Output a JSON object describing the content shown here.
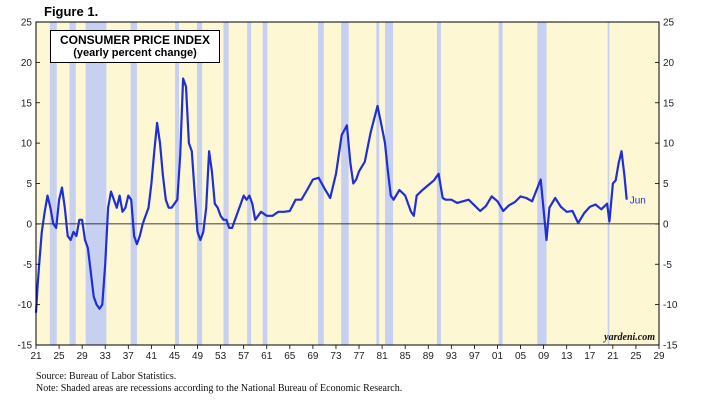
{
  "figure_label": "Figure 1.",
  "source_note": "Source: Bureau of Labor Statistics.",
  "shading_note": "Note: Shaded areas are recessions according to the National Bureau of Economic Research.",
  "watermark": "yardeni.com",
  "colors": {
    "series": "#1f2fd6",
    "recession": "#c8d0f2",
    "background": "#fdf7d4",
    "frame": "#000000"
  },
  "chart_data": {
    "type": "line",
    "title": "CONSUMER PRICE INDEX",
    "subtitle": "(yearly percent change)",
    "xlabel": "",
    "ylabel": "",
    "xlim": [
      1921,
      2029
    ],
    "ylim": [
      -15,
      25
    ],
    "y_ticks": [
      -15,
      -10,
      -5,
      0,
      5,
      10,
      15,
      20,
      25
    ],
    "x_ticks": [
      "21",
      "25",
      "29",
      "33",
      "37",
      "41",
      "45",
      "49",
      "53",
      "57",
      "61",
      "65",
      "69",
      "73",
      "77",
      "81",
      "85",
      "89",
      "93",
      "97",
      "01",
      "05",
      "09",
      "13",
      "17",
      "21",
      "25",
      "29"
    ],
    "grid": false,
    "end_label": "Jun",
    "recessions": [
      [
        1923.4,
        1924.6
      ],
      [
        1926.8,
        1927.9
      ],
      [
        1929.6,
        1933.2
      ],
      [
        1937.4,
        1938.5
      ],
      [
        1945.1,
        1945.8
      ],
      [
        1948.9,
        1949.8
      ],
      [
        1953.5,
        1954.4
      ],
      [
        1957.6,
        1958.3
      ],
      [
        1960.3,
        1961.1
      ],
      [
        1969.9,
        1970.9
      ],
      [
        1973.9,
        1975.2
      ],
      [
        1980.0,
        1980.5
      ],
      [
        1981.5,
        1982.9
      ],
      [
        1990.5,
        1991.2
      ],
      [
        2001.2,
        2001.9
      ],
      [
        2007.9,
        2009.5
      ],
      [
        2020.1,
        2020.4
      ]
    ],
    "series": [
      {
        "x": [
          1921.0,
          1921.3,
          1921.6,
          1922.0,
          1922.5,
          1923.0,
          1923.5,
          1924.0,
          1924.5,
          1925.0,
          1925.5,
          1926.0,
          1926.5,
          1927.0,
          1927.5,
          1928.0,
          1928.5,
          1929.0,
          1929.5,
          1930.0,
          1930.5,
          1931.0,
          1931.5,
          1932.0,
          1932.5,
          1933.0,
          1933.5,
          1934.0,
          1934.5,
          1935.0,
          1935.5,
          1936.0,
          1936.5,
          1937.0,
          1937.5,
          1938.0,
          1938.5,
          1939.0,
          1939.5,
          1940.0,
          1940.5,
          1941.0,
          1941.5,
          1942.0,
          1942.5,
          1943.0,
          1943.5,
          1944.0,
          1944.5,
          1945.0,
          1945.5,
          1946.0,
          1946.5,
          1947.0,
          1947.5,
          1948.0,
          1948.5,
          1949.0,
          1949.5,
          1950.0,
          1950.5,
          1951.0,
          1951.5,
          1952.0,
          1952.5,
          1953.0,
          1953.5,
          1954.0,
          1954.5,
          1955.0,
          1955.5,
          1956.0,
          1956.5,
          1957.0,
          1957.5,
          1958.0,
          1958.5,
          1959.0,
          1960.0,
          1961.0,
          1962.0,
          1963.0,
          1964.0,
          1965.0,
          1966.0,
          1967.0,
          1968.0,
          1969.0,
          1970.0,
          1971.0,
          1972.0,
          1973.0,
          1974.0,
          1974.9,
          1975.5,
          1976.0,
          1976.5,
          1977.0,
          1978.0,
          1979.0,
          1980.2,
          1980.8,
          1981.5,
          1982.0,
          1982.5,
          1983.0,
          1984.0,
          1985.0,
          1986.0,
          1986.5,
          1987.0,
          1988.0,
          1989.0,
          1990.0,
          1990.8,
          1991.5,
          1992.0,
          1993.0,
          1994.0,
          1995.0,
          1996.0,
          1997.0,
          1998.0,
          1999.0,
          2000.0,
          2001.0,
          2002.0,
          2003.0,
          2004.0,
          2005.0,
          2006.0,
          2007.0,
          2008.5,
          2009.5,
          2010.0,
          2011.0,
          2012.0,
          2013.0,
          2014.0,
          2015.0,
          2016.0,
          2017.0,
          2018.0,
          2019.0,
          2020.0,
          2020.4,
          2021.0,
          2021.5,
          2022.0,
          2022.5,
          2023.0,
          2023.4
        ],
        "y": [
          -11.0,
          -7.5,
          -4.5,
          -1.0,
          1.5,
          3.5,
          2.0,
          0.0,
          -0.5,
          3.0,
          4.5,
          2.0,
          -1.5,
          -2.0,
          -1.0,
          -1.5,
          0.5,
          0.5,
          -2.0,
          -3.0,
          -6.0,
          -9.0,
          -10.0,
          -10.5,
          -10.0,
          -5.0,
          2.0,
          4.0,
          3.0,
          2.0,
          3.5,
          1.5,
          2.0,
          3.5,
          3.0,
          -1.5,
          -2.5,
          -1.5,
          0.0,
          1.0,
          2.0,
          5.0,
          9.0,
          12.5,
          10.0,
          6.0,
          3.0,
          2.0,
          2.0,
          2.5,
          3.0,
          8.5,
          18.0,
          17.0,
          10.0,
          9.0,
          4.0,
          -1.0,
          -2.0,
          -1.0,
          2.0,
          9.0,
          6.5,
          2.5,
          2.0,
          1.0,
          0.5,
          0.5,
          -0.5,
          -0.5,
          0.5,
          1.5,
          2.5,
          3.5,
          3.0,
          3.5,
          2.5,
          0.5,
          1.5,
          1.0,
          1.0,
          1.5,
          1.5,
          1.6,
          3.0,
          3.0,
          4.2,
          5.5,
          5.7,
          4.4,
          3.2,
          6.2,
          11.0,
          12.2,
          7.5,
          5.0,
          5.5,
          6.5,
          7.7,
          11.3,
          14.6,
          12.5,
          10.0,
          6.5,
          3.5,
          3.0,
          4.2,
          3.5,
          1.5,
          1.0,
          3.5,
          4.2,
          4.8,
          5.4,
          6.2,
          3.2,
          3.0,
          3.0,
          2.6,
          2.8,
          3.0,
          2.3,
          1.6,
          2.2,
          3.4,
          2.8,
          1.6,
          2.3,
          2.7,
          3.4,
          3.2,
          2.8,
          5.5,
          -2.0,
          2.0,
          3.2,
          2.1,
          1.5,
          1.6,
          0.1,
          1.3,
          2.1,
          2.4,
          1.8,
          2.5,
          0.3,
          5.0,
          5.4,
          7.5,
          9.0,
          6.0,
          3.0
        ]
      }
    ]
  }
}
